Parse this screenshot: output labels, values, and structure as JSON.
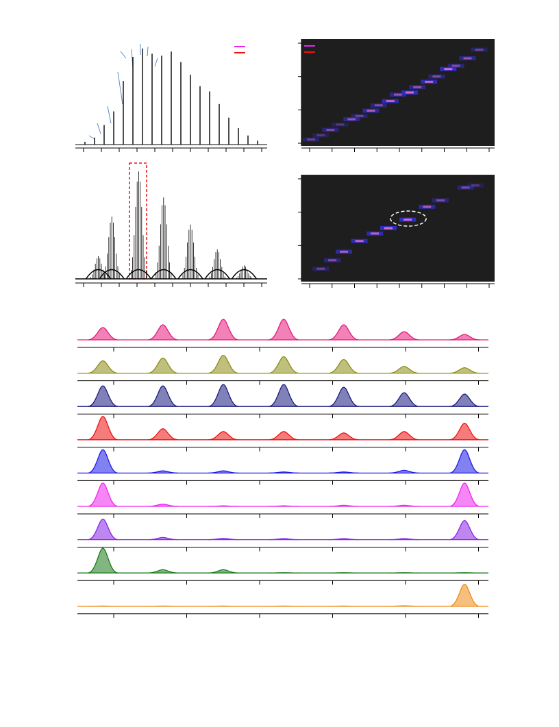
{
  "chart_data": [
    {
      "type": "spectrum",
      "xlim": [
        0,
        1
      ],
      "ylim": [
        0,
        1
      ],
      "color": "#000000",
      "x": [
        0.05,
        0.1,
        0.15,
        0.2,
        0.25,
        0.3,
        0.35,
        0.4,
        0.45,
        0.5,
        0.55,
        0.6,
        0.65,
        0.7,
        0.75,
        0.8,
        0.85,
        0.9,
        0.95
      ],
      "values": [
        0.04,
        0.08,
        0.2,
        0.33,
        0.62,
        0.85,
        0.93,
        0.88,
        0.86,
        0.9,
        0.8,
        0.68,
        0.57,
        0.52,
        0.4,
        0.27,
        0.17,
        0.1,
        0.05
      ]
    },
    {
      "type": "heatmap",
      "xlim": [
        0,
        1
      ],
      "ylim": [
        0,
        1
      ],
      "x": [
        0.05,
        0.1,
        0.15,
        0.2,
        0.26,
        0.3,
        0.36,
        0.4,
        0.46,
        0.5,
        0.56,
        0.6,
        0.66,
        0.7,
        0.76,
        0.8,
        0.86,
        0.92
      ],
      "y": [
        0.06,
        0.1,
        0.15,
        0.2,
        0.25,
        0.28,
        0.33,
        0.38,
        0.42,
        0.48,
        0.5,
        0.55,
        0.6,
        0.65,
        0.72,
        0.75,
        0.82,
        0.9
      ],
      "values": [
        0.4,
        0.3,
        0.5,
        0.3,
        0.6,
        0.4,
        0.7,
        0.5,
        0.8,
        0.6,
        0.9,
        0.6,
        0.8,
        0.5,
        0.9,
        0.5,
        0.6,
        0.4
      ]
    },
    {
      "type": "cluster-spectrum",
      "xlim": [
        0,
        1
      ],
      "ylim": [
        0,
        1
      ],
      "color": "#000000",
      "x": [
        0.12,
        0.19,
        0.33,
        0.46,
        0.6,
        0.74,
        0.88
      ],
      "values": [
        0.2,
        0.55,
        0.95,
        0.72,
        0.48,
        0.26,
        0.12
      ]
    },
    {
      "type": "heatmap",
      "xlim": [
        0,
        1
      ],
      "ylim": [
        0,
        1
      ],
      "x": [
        0.1,
        0.16,
        0.22,
        0.3,
        0.38,
        0.45,
        0.55,
        0.65,
        0.72,
        0.85,
        0.9
      ],
      "y": [
        0.12,
        0.2,
        0.28,
        0.38,
        0.45,
        0.5,
        0.58,
        0.7,
        0.76,
        0.88,
        0.9
      ],
      "values": [
        0.4,
        0.5,
        0.7,
        0.8,
        0.8,
        0.9,
        0.9,
        0.7,
        0.5,
        0.5,
        0.3
      ]
    },
    {
      "type": "traces",
      "xlim": [
        0,
        1
      ],
      "ylim": [
        0,
        1
      ],
      "x": [
        0.062,
        0.208,
        0.355,
        0.502,
        0.648,
        0.795,
        0.942
      ],
      "series": [
        {
          "color": "#e6197a",
          "values": [
            0.45,
            0.55,
            0.75,
            0.75,
            0.55,
            0.3,
            0.2
          ]
        },
        {
          "color": "#8c8c14",
          "values": [
            0.45,
            0.55,
            0.65,
            0.6,
            0.5,
            0.25,
            0.2
          ]
        },
        {
          "color": "#1a1a80",
          "values": [
            0.75,
            0.75,
            0.8,
            0.8,
            0.7,
            0.5,
            0.45
          ]
        },
        {
          "color": "#ee1111",
          "values": [
            0.85,
            0.4,
            0.3,
            0.3,
            0.25,
            0.3,
            0.6
          ]
        },
        {
          "color": "#1a1ae6",
          "values": [
            0.85,
            0.08,
            0.08,
            0.04,
            0.04,
            0.1,
            0.85
          ]
        },
        {
          "color": "#ee22ee",
          "values": [
            0.85,
            0.08,
            0.02,
            0.02,
            0.04,
            0.04,
            0.85
          ]
        },
        {
          "color": "#8822e6",
          "values": [
            0.75,
            0.08,
            0.05,
            0.04,
            0.04,
            0.04,
            0.7
          ]
        },
        {
          "color": "#1a7a1a",
          "values": [
            0.9,
            0.12,
            0.12,
            0.01,
            0.01,
            0.01,
            0.01
          ]
        },
        {
          "color": "#f08a14",
          "values": [
            0.01,
            0.01,
            0.01,
            0.01,
            0.01,
            0.02,
            0.8
          ]
        }
      ]
    }
  ]
}
